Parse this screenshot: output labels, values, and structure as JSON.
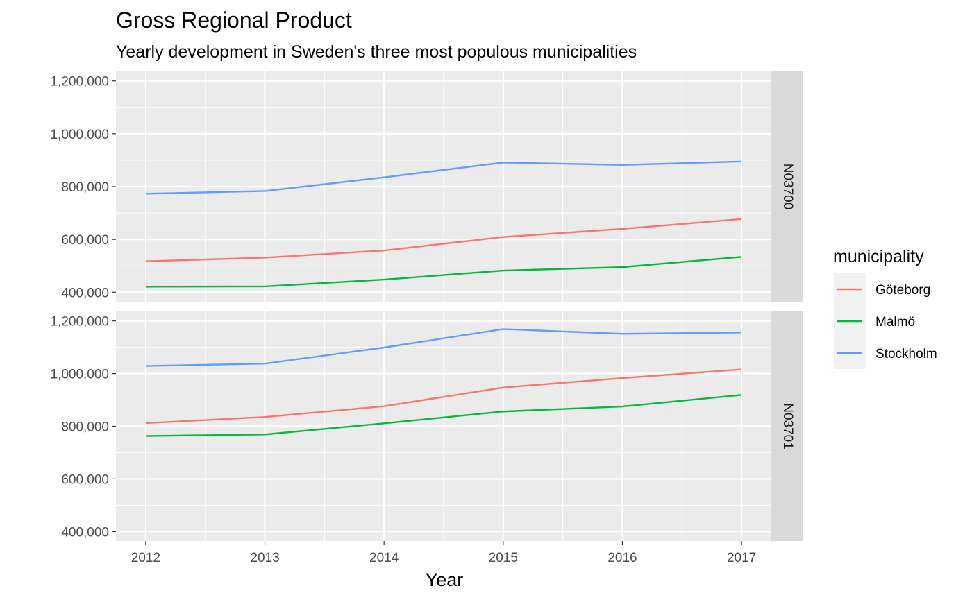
{
  "chart_data": {
    "type": "line",
    "title": "Gross Regional Product",
    "subtitle": "Yearly development in Sweden's three most populous municipalities",
    "xlabel": "Year",
    "ylabel": "",
    "x": [
      2012,
      2013,
      2014,
      2015,
      2016,
      2017
    ],
    "x_tick_labels": [
      "2012",
      "2013",
      "2014",
      "2015",
      "2016",
      "2017"
    ],
    "ylim": [
      400000,
      1200000
    ],
    "y_tick_labels": [
      "400,000",
      "600,000",
      "800,000",
      "1,000,000",
      "1,200,000"
    ],
    "grid": true,
    "legend": {
      "title": "municipality",
      "position": "right",
      "entries": [
        "Göteborg",
        "Malmö",
        "Stockholm"
      ]
    },
    "panels": [
      {
        "label": "N03700",
        "series": [
          {
            "name": "Göteborg",
            "color": "#F8766D",
            "values": [
              517000,
              531000,
              558000,
              609000,
              640000,
              677000
            ]
          },
          {
            "name": "Malmö",
            "color": "#00BA38",
            "values": [
              421000,
              422000,
              448000,
              482000,
              495000,
              534000
            ]
          },
          {
            "name": "Stockholm",
            "color": "#619CFF",
            "values": [
              773000,
              783000,
              835000,
              891000,
              882000,
              895000
            ]
          }
        ]
      },
      {
        "label": "N03701",
        "series": [
          {
            "name": "Göteborg",
            "color": "#F8766D",
            "values": [
              812000,
              835000,
              876000,
              947000,
              983000,
              1016000
            ]
          },
          {
            "name": "Malmö",
            "color": "#00BA38",
            "values": [
              763000,
              769000,
              811000,
              856000,
              875000,
              919000
            ]
          },
          {
            "name": "Stockholm",
            "color": "#619CFF",
            "values": [
              1029000,
              1038000,
              1099000,
              1169000,
              1151000,
              1156000
            ]
          }
        ]
      }
    ]
  }
}
